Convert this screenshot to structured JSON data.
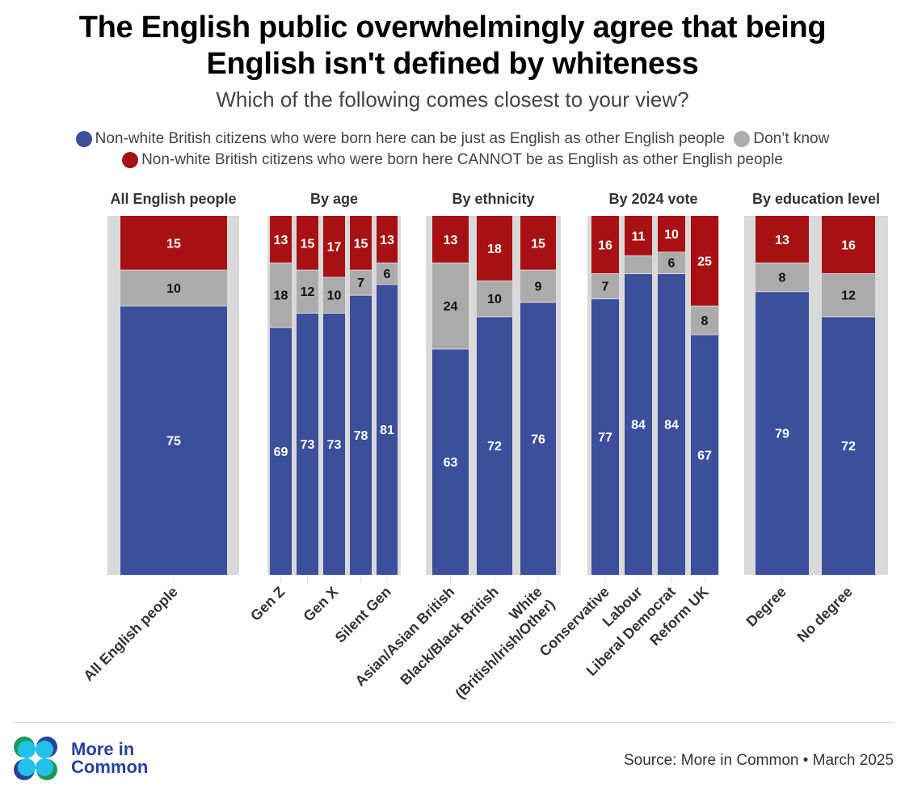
{
  "header": {
    "title_line1": "The English public overwhelmingly agree that being",
    "title_line2": "English isn't defined by whiteness",
    "subtitle": "Which of the following comes closest to your view?"
  },
  "legend": [
    {
      "label": "Non-white British citizens who were born here can be just as English as other English people",
      "color": "#3c4f9c"
    },
    {
      "label": "Don’t know",
      "color": "#ababab"
    },
    {
      "label": "Non-white British citizens who were born here CANNOT be as English as other English people",
      "color": "#a81114"
    }
  ],
  "chart_data": {
    "type": "bar",
    "stacked": true,
    "title": "The English public overwhelmingly agree that being English isn't defined by whiteness",
    "subtitle": "Which of the following comes closest to your view?",
    "ylim": [
      0,
      100
    ],
    "grid": false,
    "legend_position": "top",
    "series_order": [
      "can_be_english",
      "dont_know",
      "cannot_be_english"
    ],
    "series_names": {
      "can_be_english": "Non-white British citizens who were born here can be just as English as other English people",
      "dont_know": "Don’t know",
      "cannot_be_english": "Non-white British citizens who were born here CANNOT be as English as other English people"
    },
    "colors": {
      "can_be_english": "#3c4f9c",
      "dont_know": "#ababab",
      "cannot_be_english": "#a81114",
      "panel_bg": "#d9d9d9"
    },
    "groups": [
      {
        "title": "All English people",
        "bars": [
          {
            "label": "All English people",
            "show_label": true,
            "can_be_english": 75,
            "dont_know": 10,
            "cannot_be_english": 15
          }
        ]
      },
      {
        "title": "By age",
        "bars": [
          {
            "label": "Gen Z",
            "show_label": true,
            "can_be_english": 69,
            "dont_know": 18,
            "cannot_be_english": 13
          },
          {
            "label": "",
            "show_label": false,
            "can_be_english": 73,
            "dont_know": 12,
            "cannot_be_english": 15
          },
          {
            "label": "Gen X",
            "show_label": true,
            "can_be_english": 73,
            "dont_know": 10,
            "cannot_be_english": 17
          },
          {
            "label": "",
            "show_label": false,
            "can_be_english": 78,
            "dont_know": 7,
            "cannot_be_english": 15
          },
          {
            "label": "Silent Gen",
            "show_label": true,
            "can_be_english": 81,
            "dont_know": 6,
            "cannot_be_english": 13
          }
        ]
      },
      {
        "title": "By ethnicity",
        "bars": [
          {
            "label": "Asian/Asian British",
            "show_label": true,
            "can_be_english": 63,
            "dont_know": 24,
            "cannot_be_english": 13
          },
          {
            "label": "Black/Black British",
            "show_label": true,
            "can_be_english": 72,
            "dont_know": 10,
            "cannot_be_english": 18
          },
          {
            "label": "White (British/Irish/Other)",
            "label_lines": [
              "White",
              "(British/Irish/Other)"
            ],
            "show_label": true,
            "can_be_english": 76,
            "dont_know": 9,
            "cannot_be_english": 15
          }
        ]
      },
      {
        "title": "By 2024 vote",
        "bars": [
          {
            "label": "Conservative",
            "show_label": true,
            "can_be_english": 77,
            "dont_know": 7,
            "cannot_be_english": 16
          },
          {
            "label": "Labour",
            "show_label": true,
            "can_be_english": 84,
            "dont_know": 5,
            "dont_know_label_hidden": true,
            "cannot_be_english": 11
          },
          {
            "label": "Liberal Democrat",
            "show_label": true,
            "can_be_english": 84,
            "dont_know": 6,
            "cannot_be_english": 10
          },
          {
            "label": "Reform UK",
            "show_label": true,
            "can_be_english": 67,
            "dont_know": 8,
            "cannot_be_english": 25
          }
        ]
      },
      {
        "title": "By education level",
        "bars": [
          {
            "label": "Degree",
            "show_label": true,
            "can_be_english": 79,
            "dont_know": 8,
            "cannot_be_english": 13
          },
          {
            "label": "No degree",
            "show_label": true,
            "can_be_english": 72,
            "dont_know": 12,
            "cannot_be_english": 16
          }
        ]
      }
    ]
  },
  "footer": {
    "logo_line1": "More in",
    "logo_line2": "Common",
    "source": "Source: More in Common • March 2025"
  }
}
